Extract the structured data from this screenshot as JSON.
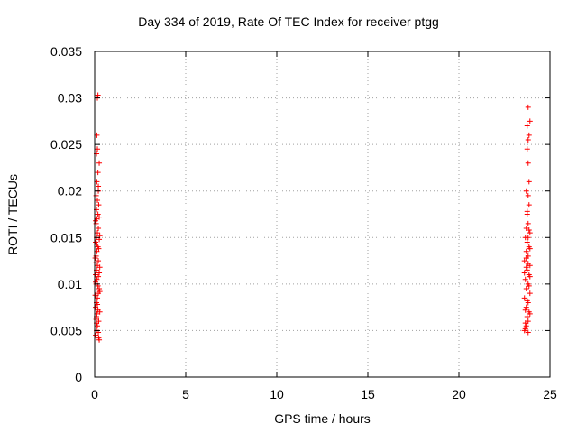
{
  "chart_data": {
    "type": "scatter",
    "title": "Day 334 of 2019, Rate Of TEC Index for receiver ptgg",
    "xlabel": "GPS time / hours",
    "ylabel": "ROTI / TECUs",
    "xlim": [
      0,
      25
    ],
    "ylim": [
      0,
      0.035
    ],
    "x_ticks": [
      "0",
      "5",
      "10",
      "15",
      "20",
      "25"
    ],
    "y_ticks": [
      "0",
      "0.005",
      "0.01",
      "0.015",
      "0.02",
      "0.025",
      "0.03",
      "0.035"
    ],
    "grid": true,
    "marker": "+",
    "color": "#ff0000",
    "series": [
      {
        "values": [
          [
            0.05,
            0.0045
          ],
          [
            0.1,
            0.005
          ],
          [
            0.15,
            0.0055
          ],
          [
            0.2,
            0.0048
          ],
          [
            0.08,
            0.0062
          ],
          [
            0.12,
            0.0068
          ],
          [
            0.18,
            0.0072
          ],
          [
            0.22,
            0.006
          ],
          [
            0.05,
            0.0075
          ],
          [
            0.1,
            0.008
          ],
          [
            0.15,
            0.0085
          ],
          [
            0.2,
            0.009
          ],
          [
            0.25,
            0.0095
          ],
          [
            0.08,
            0.01
          ],
          [
            0.12,
            0.0105
          ],
          [
            0.18,
            0.0098
          ],
          [
            0.05,
            0.011
          ],
          [
            0.1,
            0.0115
          ],
          [
            0.15,
            0.012
          ],
          [
            0.2,
            0.0125
          ],
          [
            0.25,
            0.0112
          ],
          [
            0.08,
            0.013
          ],
          [
            0.12,
            0.0135
          ],
          [
            0.18,
            0.014
          ],
          [
            0.05,
            0.0145
          ],
          [
            0.1,
            0.015
          ],
          [
            0.15,
            0.0155
          ],
          [
            0.2,
            0.016
          ],
          [
            0.25,
            0.0148
          ],
          [
            0.08,
            0.0165
          ],
          [
            0.12,
            0.017
          ],
          [
            0.18,
            0.0175
          ],
          [
            0.1,
            0.018
          ],
          [
            0.15,
            0.019
          ],
          [
            0.2,
            0.02
          ],
          [
            0.12,
            0.021
          ],
          [
            0.18,
            0.022
          ],
          [
            0.1,
            0.024
          ],
          [
            0.15,
            0.0245
          ],
          [
            0.12,
            0.026
          ],
          [
            0.15,
            0.03
          ],
          [
            0.18,
            0.0303
          ],
          [
            0.25,
            0.004
          ],
          [
            0.22,
            0.0042
          ],
          [
            0.1,
            0.0065
          ],
          [
            0.28,
            0.0118
          ],
          [
            0.28,
            0.0092
          ],
          [
            0.03,
            0.0128
          ],
          [
            0.03,
            0.0088
          ],
          [
            0.28,
            0.0152
          ],
          [
            0.05,
            0.0168
          ],
          [
            0.22,
            0.0185
          ],
          [
            0.08,
            0.0195
          ],
          [
            0.25,
            0.023
          ],
          [
            0.2,
            0.0205
          ],
          [
            0.15,
            0.0078
          ],
          [
            0.1,
            0.0058
          ],
          [
            0.2,
            0.0108
          ],
          [
            0.12,
            0.0143
          ],
          [
            0.25,
            0.0172
          ],
          [
            0.22,
            0.0138
          ],
          [
            0.08,
            0.0123
          ],
          [
            0.28,
            0.007
          ],
          [
            0.05,
            0.0102
          ]
        ]
      },
      {
        "values": [
          [
            23.6,
            0.005
          ],
          [
            23.7,
            0.0055
          ],
          [
            23.8,
            0.006
          ],
          [
            23.65,
            0.0052
          ],
          [
            23.75,
            0.0065
          ],
          [
            23.85,
            0.007
          ],
          [
            23.7,
            0.0075
          ],
          [
            23.8,
            0.008
          ],
          [
            23.6,
            0.0085
          ],
          [
            23.9,
            0.009
          ],
          [
            23.7,
            0.0095
          ],
          [
            23.8,
            0.01
          ],
          [
            23.65,
            0.0105
          ],
          [
            23.85,
            0.011
          ],
          [
            23.75,
            0.0115
          ],
          [
            23.9,
            0.012
          ],
          [
            23.6,
            0.0125
          ],
          [
            23.8,
            0.013
          ],
          [
            23.7,
            0.0135
          ],
          [
            23.85,
            0.014
          ],
          [
            23.75,
            0.0145
          ],
          [
            23.8,
            0.015
          ],
          [
            23.9,
            0.0155
          ],
          [
            23.7,
            0.016
          ],
          [
            23.8,
            0.0165
          ],
          [
            23.75,
            0.0175
          ],
          [
            23.85,
            0.0185
          ],
          [
            23.8,
            0.0195
          ],
          [
            23.7,
            0.02
          ],
          [
            23.85,
            0.021
          ],
          [
            23.8,
            0.023
          ],
          [
            23.75,
            0.0245
          ],
          [
            23.8,
            0.0255
          ],
          [
            23.85,
            0.026
          ],
          [
            23.75,
            0.027
          ],
          [
            23.9,
            0.0275
          ],
          [
            23.8,
            0.029
          ],
          [
            23.65,
            0.0058
          ],
          [
            23.9,
            0.0068
          ],
          [
            23.6,
            0.0112
          ],
          [
            23.9,
            0.0138
          ],
          [
            23.65,
            0.015
          ],
          [
            23.85,
            0.0098
          ],
          [
            23.75,
            0.0082
          ],
          [
            23.8,
            0.0122
          ],
          [
            23.7,
            0.0118
          ],
          [
            23.9,
            0.0108
          ],
          [
            23.65,
            0.0072
          ],
          [
            23.8,
            0.0048
          ],
          [
            23.75,
            0.0178
          ],
          [
            23.85,
            0.0158
          ],
          [
            23.7,
            0.0128
          ]
        ]
      }
    ]
  }
}
